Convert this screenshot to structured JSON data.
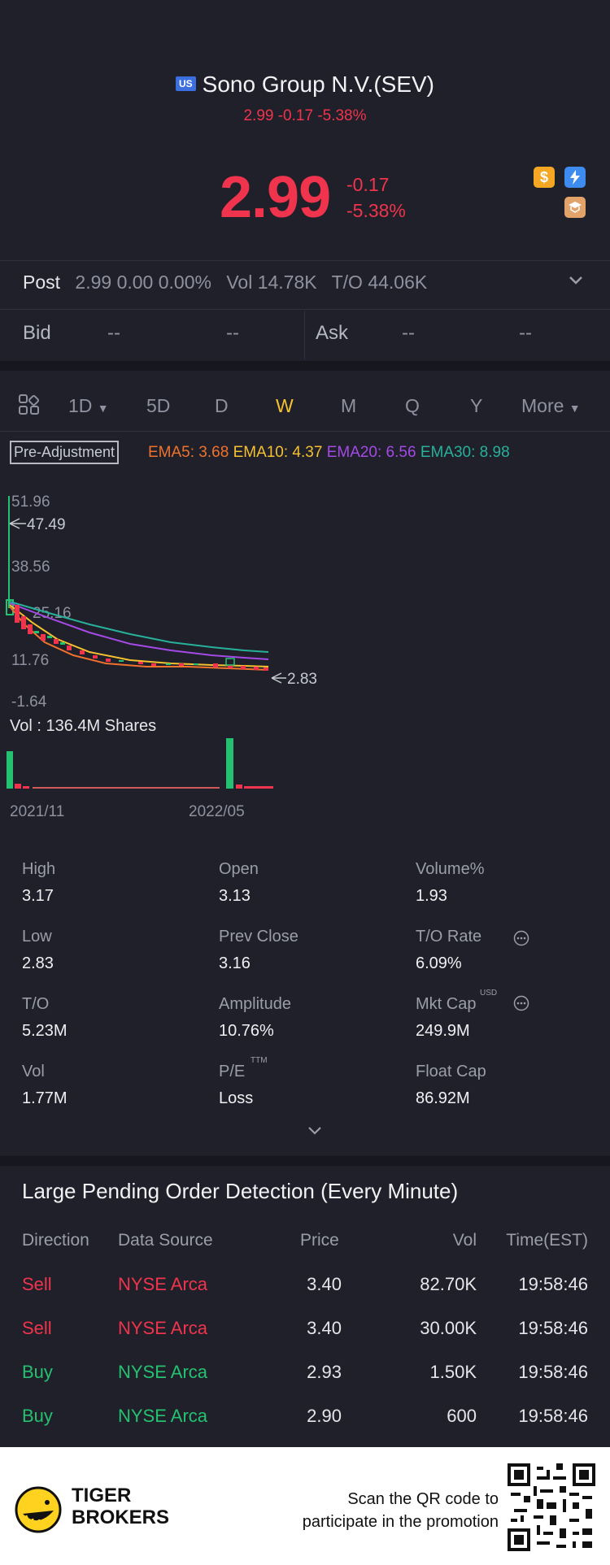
{
  "header": {
    "market_badge": "US",
    "title": "Sono Group N.V.(SEV)",
    "subtitle": "2.99 -0.17 -5.38%",
    "price": "2.99",
    "change": "-0.17",
    "change_pct": "-5.38%",
    "icons": [
      "dollar-icon",
      "lightning-icon",
      "education-icon"
    ]
  },
  "post": {
    "label": "Post",
    "price": "2.99 0.00 0.00%",
    "vol": "Vol 14.78K",
    "to": "T/O 44.06K"
  },
  "quote": {
    "bid_label": "Bid",
    "bid_price": "--",
    "bid_size": "--",
    "ask_label": "Ask",
    "ask_price": "--",
    "ask_size": "--"
  },
  "tabs": {
    "items": [
      "1D",
      "5D",
      "D",
      "W",
      "M",
      "Q",
      "Y",
      "More"
    ],
    "active": "W"
  },
  "indicators": {
    "adjust": "Pre-Adjustment",
    "ema5": "EMA5: 3.68",
    "ema10": "EMA10: 4.37",
    "ema20": "EMA20: 6.56",
    "ema30": "EMA30: 8.98"
  },
  "chart_data": {
    "type": "candlestick",
    "price_ticks": [
      "51.96",
      "38.56",
      "11.76",
      "-1.64"
    ],
    "hidden_tick": "25.16",
    "max_marker": "47.49",
    "min_marker": "2.83",
    "vol_label": "Vol  : 136.4M Shares",
    "x_ticks": [
      "2021/11",
      "2022/05"
    ],
    "colors": {
      "up": "#24c270",
      "down": "#f0344d",
      "ema5": "#f0722d",
      "ema10": "#f5c130",
      "ema20": "#a44ae6",
      "ema30": "#27b19b"
    }
  },
  "stats": [
    {
      "label": "High",
      "value": "3.17"
    },
    {
      "label": "Open",
      "value": "3.13"
    },
    {
      "label": "Volume%",
      "value": "1.93"
    },
    {
      "label": "Low",
      "value": "2.83"
    },
    {
      "label": "Prev Close",
      "value": "3.16"
    },
    {
      "label": "T/O Rate",
      "value": "6.09%"
    },
    {
      "label": "T/O",
      "value": "5.23M"
    },
    {
      "label": "Amplitude",
      "value": "10.76%"
    },
    {
      "label": "Mkt Cap",
      "value": "249.9M"
    },
    {
      "label": "Vol",
      "value": "1.77M"
    },
    {
      "label": "P/E",
      "value": "Loss"
    },
    {
      "label": "Float Cap",
      "value": "86.92M"
    }
  ],
  "stats_superscripts": {
    "mkt_cap": "USD",
    "pe": "TTM"
  },
  "orders": {
    "title": "Large Pending Order Detection (Every Minute)",
    "headers": [
      "Direction",
      "Data Source",
      "Price",
      "Vol",
      "Time(EST)"
    ],
    "rows": [
      {
        "direction": "Sell",
        "source": "NYSE Arca",
        "price": "3.40",
        "vol": "82.70K",
        "time": "19:58:46"
      },
      {
        "direction": "Sell",
        "source": "NYSE Arca",
        "price": "3.40",
        "vol": "30.00K",
        "time": "19:58:46"
      },
      {
        "direction": "Buy",
        "source": "NYSE Arca",
        "price": "2.93",
        "vol": "1.50K",
        "time": "19:58:46"
      },
      {
        "direction": "Buy",
        "source": "NYSE Arca",
        "price": "2.90",
        "vol": "600",
        "time": "19:58:46"
      }
    ]
  },
  "footer": {
    "brand_line1": "TIGER",
    "brand_line2": "BROKERS",
    "cta_line1": "Scan the QR code to",
    "cta_line2": "participate in the promotion"
  }
}
